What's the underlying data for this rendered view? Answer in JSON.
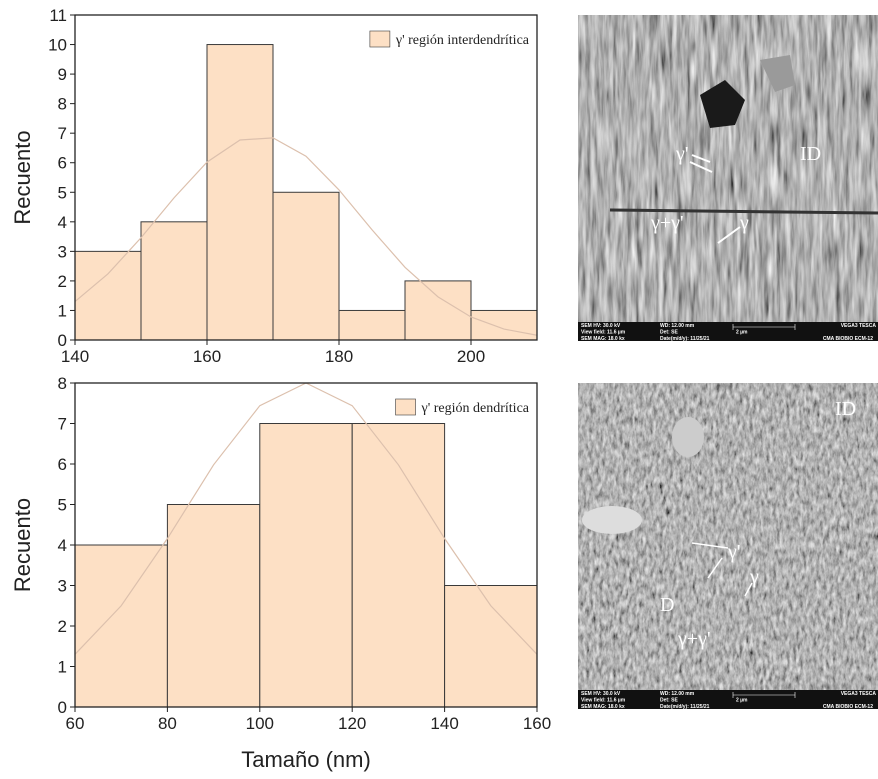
{
  "chart_data": [
    {
      "type": "histogram",
      "ylabel": "Recuento",
      "bins": [
        140,
        150,
        160,
        170,
        180,
        190,
        200,
        210
      ],
      "series": [
        {
          "name": "γ' región interdendrítica",
          "color": "#fde0c5",
          "values": [
            3,
            4,
            10,
            5,
            1,
            2,
            1
          ]
        }
      ],
      "edgecolor": "#3a3a3a",
      "legend": "upper right",
      "xlim": [
        140,
        210
      ],
      "xticks": [
        140,
        160,
        180,
        200
      ],
      "ylim": [
        0,
        11
      ],
      "yticks": [
        0,
        1,
        2,
        3,
        4,
        5,
        6,
        7,
        8,
        9,
        10,
        11
      ],
      "fit": {
        "color": "#dcc0ad",
        "x": [
          140,
          145,
          150,
          155,
          160,
          165,
          170,
          175,
          180,
          185,
          190,
          195,
          200,
          205,
          210
        ],
        "values": [
          1.3,
          2.24,
          3.46,
          4.81,
          6.02,
          6.77,
          6.84,
          6.22,
          5.08,
          3.73,
          2.46,
          1.46,
          0.78,
          0.37,
          0.16
        ]
      }
    },
    {
      "type": "histogram",
      "ylabel": "Recuento",
      "xlabel": "Tamaño (nm)",
      "bins": [
        60,
        80,
        100,
        120,
        140,
        160
      ],
      "series": [
        {
          "name": "γ' región dendrítica",
          "color": "#fde0c5",
          "values": [
            4,
            5,
            7,
            7,
            3
          ]
        }
      ],
      "edgecolor": "#3a3a3a",
      "legend": "upper right",
      "xlim": [
        60,
        160
      ],
      "xticks": [
        60,
        80,
        100,
        120,
        140,
        160
      ],
      "ylim": [
        0,
        8
      ],
      "yticks": [
        0,
        1,
        2,
        3,
        4,
        5,
        6,
        7,
        8
      ],
      "fit": {
        "color": "#dcc0ad",
        "x": [
          60,
          70,
          80,
          90,
          100,
          110,
          120,
          130,
          140,
          150,
          160
        ],
        "values": [
          1.3,
          2.5,
          4.16,
          5.98,
          7.44,
          8.0,
          7.44,
          5.98,
          4.16,
          2.5,
          1.3
        ]
      }
    }
  ],
  "images": [
    {
      "labels": [
        "γ'",
        "ID",
        "γ+γ'",
        "γ"
      ],
      "info": [
        "SEM HV: 30.0 kV",
        "WD: 12.00 mm",
        "VEGA3 TESCA",
        "View field: 11.6 µm",
        "Det: SE",
        "2 µm",
        "SEM MAG: 18.0 kx",
        "Date(m/d/y): 11/25/21",
        "CMA BIOBIO ECM-12"
      ]
    },
    {
      "labels": [
        "ID",
        "γ'",
        "γ",
        "D",
        "γ+γ'"
      ],
      "info": [
        "SEM HV: 30.0 kV",
        "WD: 12.00 mm",
        "VEGA3 TESCA",
        "View field: 11.6 µm",
        "Det: SE",
        "2 µm",
        "SEM MAG: 18.0 kx",
        "Date(m/d/y): 11/25/21",
        "CMA BIOBIO ECM-12"
      ]
    }
  ]
}
